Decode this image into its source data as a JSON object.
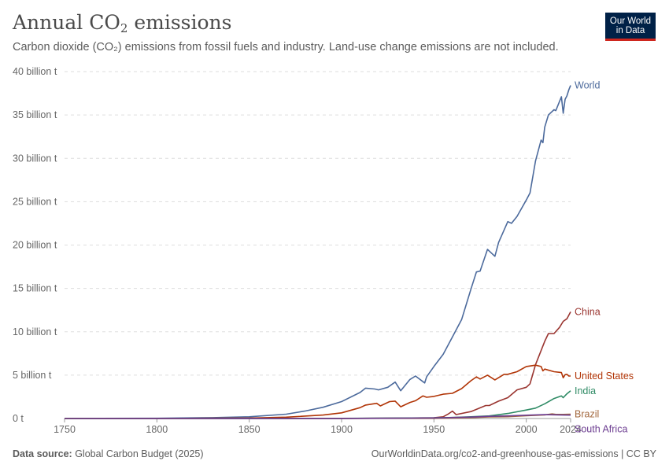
{
  "header": {
    "title_main": "Annual CO",
    "title_sub": "2",
    "title_end": " emissions",
    "subtitle": "Carbon dioxide (CO₂) emissions from fossil fuels and industry. Land-use change emissions are not included."
  },
  "logo": {
    "line1": "Our World",
    "line2": "in Data"
  },
  "footer": {
    "source_label": "Data source:",
    "source_text": " Global Carbon Budget (2025)",
    "right_text": "OurWorldinData.org/co2-and-greenhouse-gas-emissions | CC BY"
  },
  "chart_data": {
    "type": "line",
    "title": "Annual CO₂ emissions",
    "xlabel": "",
    "ylabel": "",
    "xlim": [
      1750,
      2024
    ],
    "ylim": [
      0,
      40
    ],
    "grid": "horizontal dashed",
    "legend": "inline labels at line ends",
    "x_ticks": [
      {
        "value": 1750,
        "label": "1750"
      },
      {
        "value": 1800,
        "label": "1800"
      },
      {
        "value": 1850,
        "label": "1850"
      },
      {
        "value": 1900,
        "label": "1900"
      },
      {
        "value": 1950,
        "label": "1950"
      },
      {
        "value": 2000,
        "label": "2000"
      },
      {
        "value": 2024,
        "label": "2024"
      }
    ],
    "y_ticks": [
      {
        "value": 0,
        "label": "0 t"
      },
      {
        "value": 5,
        "label": "5 billion t"
      },
      {
        "value": 10,
        "label": "10 billion t"
      },
      {
        "value": 15,
        "label": "15 billion t"
      },
      {
        "value": 20,
        "label": "20 billion t"
      },
      {
        "value": 25,
        "label": "25 billion t"
      },
      {
        "value": 30,
        "label": "30 billion t"
      },
      {
        "value": 35,
        "label": "35 billion t"
      },
      {
        "value": 40,
        "label": "40 billion t"
      }
    ],
    "series": [
      {
        "name": "World",
        "color": "#4c6a9c",
        "x": [
          1750,
          1800,
          1830,
          1850,
          1870,
          1880,
          1890,
          1900,
          1910,
          1913,
          1918,
          1920,
          1925,
          1929,
          1932,
          1937,
          1940,
          1945,
          1946,
          1950,
          1955,
          1960,
          1965,
          1970,
          1973,
          1975,
          1979,
          1980,
          1983,
          1985,
          1990,
          1992,
          1995,
          2000,
          2002,
          2005,
          2008,
          2009,
          2010,
          2012,
          2015,
          2016,
          2019,
          2020,
          2021,
          2022,
          2023,
          2024
        ],
        "y": [
          0.01,
          0.03,
          0.1,
          0.2,
          0.5,
          0.85,
          1.3,
          1.95,
          3.0,
          3.5,
          3.4,
          3.3,
          3.6,
          4.2,
          3.2,
          4.5,
          4.9,
          4.1,
          4.8,
          6.0,
          7.4,
          9.4,
          11.4,
          14.9,
          16.9,
          17.0,
          19.5,
          19.3,
          18.7,
          20.3,
          22.7,
          22.5,
          23.3,
          25.2,
          26.0,
          29.7,
          32.1,
          31.8,
          33.6,
          35.0,
          35.6,
          35.5,
          37.1,
          35.2,
          36.8,
          37.2,
          37.9,
          38.4
        ]
      },
      {
        "name": "China",
        "color": "#9a3530",
        "x": [
          1750,
          1900,
          1950,
          1955,
          1958,
          1960,
          1962,
          1970,
          1978,
          1980,
          1985,
          1990,
          1995,
          2000,
          2002,
          2005,
          2010,
          2012,
          2015,
          2018,
          2020,
          2022,
          2024
        ],
        "y": [
          0,
          0.01,
          0.08,
          0.2,
          0.55,
          0.85,
          0.45,
          0.8,
          1.5,
          1.5,
          2.0,
          2.4,
          3.3,
          3.6,
          4.0,
          6.2,
          8.9,
          9.8,
          9.8,
          10.5,
          11.2,
          11.5,
          12.3
        ]
      },
      {
        "name": "United States",
        "color": "#b13507",
        "x": [
          1750,
          1800,
          1850,
          1870,
          1890,
          1900,
          1910,
          1913,
          1919,
          1921,
          1926,
          1929,
          1932,
          1937,
          1940,
          1944,
          1946,
          1950,
          1955,
          1960,
          1965,
          1970,
          1973,
          1975,
          1979,
          1983,
          1988,
          1990,
          1995,
          2000,
          2005,
          2008,
          2009,
          2010,
          2015,
          2019,
          2020,
          2021,
          2022,
          2023,
          2024
        ],
        "y": [
          0,
          0.003,
          0.05,
          0.15,
          0.4,
          0.65,
          1.25,
          1.55,
          1.75,
          1.45,
          1.95,
          2.0,
          1.35,
          1.85,
          2.05,
          2.6,
          2.45,
          2.55,
          2.8,
          2.9,
          3.45,
          4.35,
          4.8,
          4.55,
          5.0,
          4.45,
          5.1,
          5.1,
          5.4,
          6.0,
          6.15,
          6.0,
          5.5,
          5.7,
          5.4,
          5.3,
          4.7,
          5.05,
          5.1,
          4.9,
          4.9
        ]
      },
      {
        "name": "India",
        "color": "#2f8b65",
        "x": [
          1750,
          1900,
          1950,
          1960,
          1970,
          1980,
          1990,
          2000,
          2005,
          2010,
          2015,
          2019,
          2020,
          2022,
          2024
        ],
        "y": [
          0,
          0.02,
          0.07,
          0.12,
          0.2,
          0.3,
          0.58,
          0.98,
          1.2,
          1.7,
          2.3,
          2.6,
          2.4,
          2.85,
          3.2
        ]
      },
      {
        "name": "Brazil",
        "color": "#a2673d",
        "x": [
          1750,
          1950,
          1970,
          1980,
          1990,
          2000,
          2010,
          2014,
          2016,
          2020,
          2024
        ],
        "y": [
          0,
          0.02,
          0.1,
          0.19,
          0.21,
          0.33,
          0.42,
          0.53,
          0.47,
          0.47,
          0.49
        ]
      },
      {
        "name": "South Africa",
        "color": "#6d3e91",
        "x": [
          1750,
          1900,
          1950,
          1970,
          1980,
          1990,
          2000,
          2010,
          2020,
          2024
        ],
        "y": [
          0,
          0.01,
          0.06,
          0.16,
          0.25,
          0.3,
          0.38,
          0.44,
          0.4,
          0.39
        ]
      }
    ]
  }
}
